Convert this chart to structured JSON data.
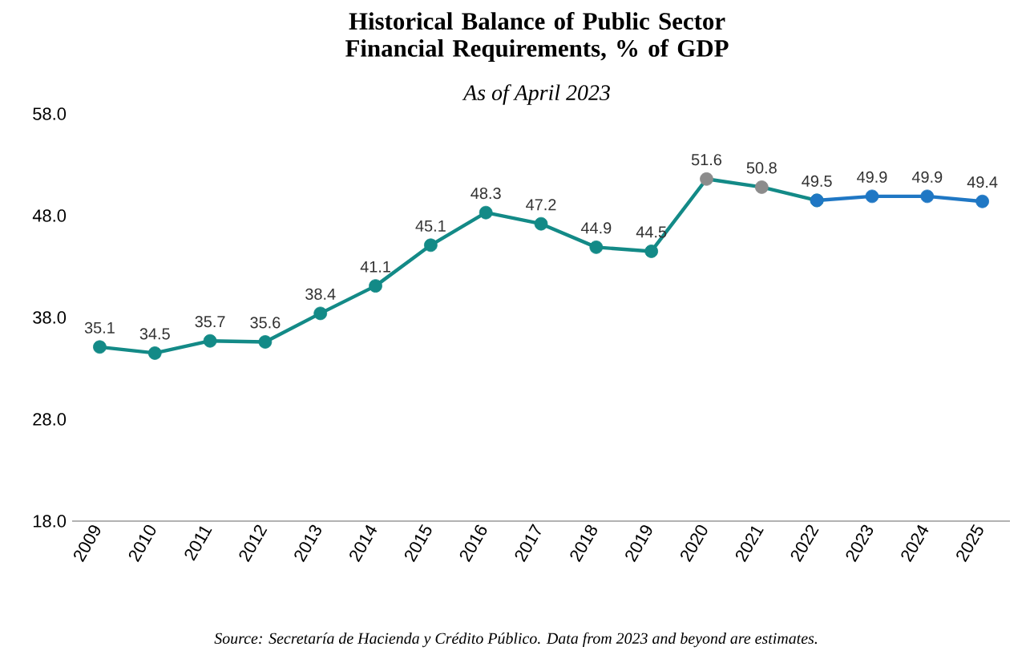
{
  "chart_data": {
    "type": "line",
    "title": "Historical Balance of Public Sector Financial Requirements, % of GDP",
    "subtitle": "As of April 2023",
    "annotations": [
      "Source: Secretaría de Hacienda y Crédito Público. Data from 2023 and beyond are estimates."
    ],
    "categories": [
      "2009",
      "2010",
      "2011",
      "2012",
      "2013",
      "2014",
      "2015",
      "2016",
      "2017",
      "2018",
      "2019",
      "2020",
      "2021",
      "2022",
      "2023",
      "2024",
      "2025"
    ],
    "series": [
      {
        "color": "#138a87",
        "colors": [
          "#138a87",
          "#138a87",
          "#138a87",
          "#138a87",
          "#138a87",
          "#138a87",
          "#138a87",
          "#138a87",
          "#138a87",
          "#138a87",
          "#138a87",
          "#8c8c8c",
          "#8c8c8c",
          "#138a87",
          null,
          null,
          null
        ],
        "values": [
          35.1,
          34.5,
          35.7,
          35.6,
          38.4,
          41.1,
          45.1,
          48.3,
          47.2,
          44.9,
          44.5,
          51.6,
          50.8,
          49.5,
          null,
          null,
          null
        ]
      },
      {
        "color": "#1f77c4",
        "values": [
          null,
          null,
          null,
          null,
          null,
          null,
          null,
          null,
          null,
          null,
          null,
          null,
          null,
          49.5,
          49.9,
          49.9,
          49.4
        ],
        "value_labels": [
          null,
          null,
          null,
          null,
          null,
          null,
          null,
          null,
          null,
          null,
          null,
          null,
          null,
          null,
          "49.9",
          "49.9",
          "49.4"
        ]
      }
    ],
    "ylim": [
      18,
      58
    ],
    "yticks": [
      {
        "value": 18,
        "label": "18.0"
      },
      {
        "value": 28,
        "label": "28.0"
      },
      {
        "value": 38,
        "label": "38.0"
      },
      {
        "value": 48,
        "label": "48.0"
      },
      {
        "value": 58,
        "label": "58.0"
      }
    ],
    "data_labels": true,
    "marker": "circle",
    "line_style": "solid",
    "grid": false
  }
}
